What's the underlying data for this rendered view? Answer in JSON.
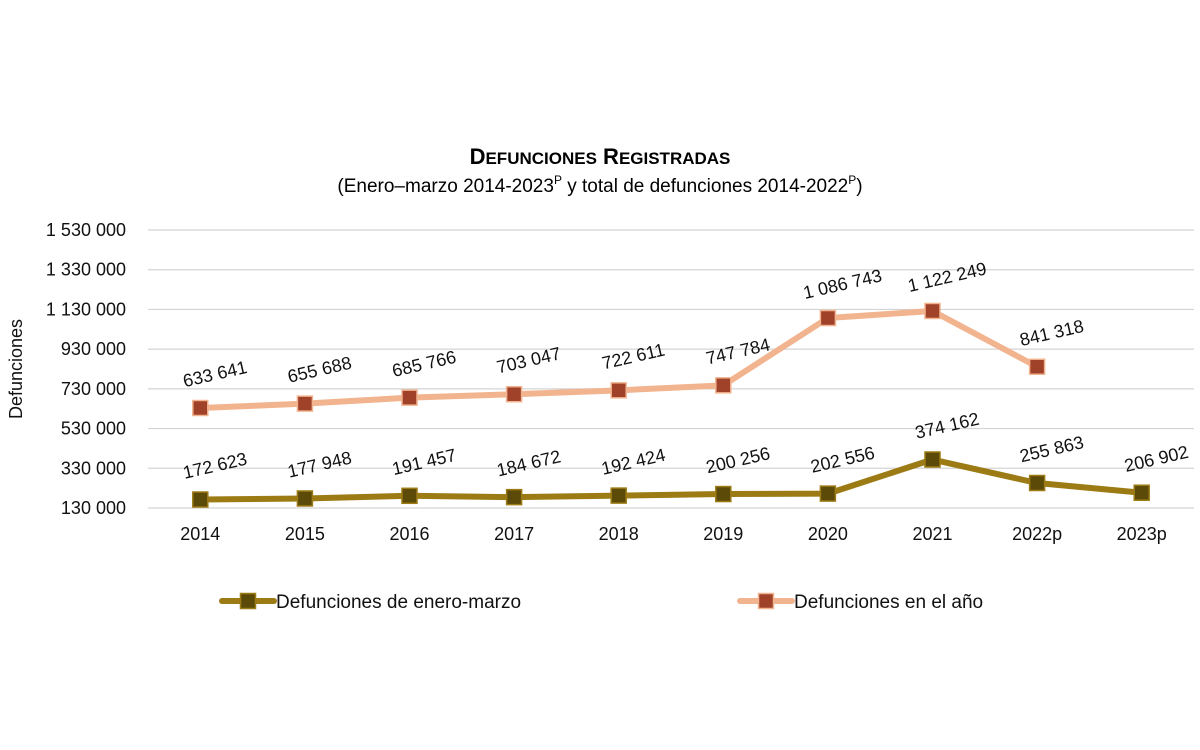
{
  "chart_data": {
    "type": "line",
    "title": "Defunciones registradas",
    "subtitle": {
      "prefix": "(Enero–marzo 2014-2023",
      "sup1": "P",
      "middle": " y total de defunciones 2014-2022",
      "sup2": "P",
      "suffix": ")"
    },
    "ylabel": "Defunciones",
    "ylim": [
      130000,
      1530000
    ],
    "yticks": [
      130000,
      330000,
      530000,
      730000,
      930000,
      1130000,
      1330000,
      1530000
    ],
    "ytick_labels": [
      "130 000",
      "330 000",
      "530 000",
      "730 000",
      "930 000",
      "1 130 000",
      "1 330 000",
      "1 530 000"
    ],
    "grid": true,
    "legend_position": "bottom",
    "categories": [
      "2014",
      "2015",
      "2016",
      "2017",
      "2018",
      "2019",
      "2020",
      "2021",
      "2022p",
      "2023p"
    ],
    "series": [
      {
        "name": "Defunciones de enero-marzo",
        "color": "#9c7b14",
        "marker_color": "#5c4a08",
        "values": [
          172623,
          177948,
          191457,
          184672,
          192424,
          200256,
          202556,
          374162,
          255863,
          206902
        ],
        "labels": [
          "172 623",
          "177 948",
          "191 457",
          "184 672",
          "192 424",
          "200 256",
          "202 556",
          "374 162",
          "255 863",
          "206 902"
        ]
      },
      {
        "name": "Defunciones en el año",
        "color": "#f2b48f",
        "marker_color": "#a0412a",
        "values": [
          633641,
          655688,
          685766,
          703047,
          722611,
          747784,
          1086743,
          1122249,
          841318,
          null
        ],
        "labels": [
          "633 641",
          "655 688",
          "685 766",
          "703 047",
          "722 611",
          "747 784",
          "1 086 743",
          "1 122 249",
          "841 318",
          ""
        ]
      }
    ]
  }
}
